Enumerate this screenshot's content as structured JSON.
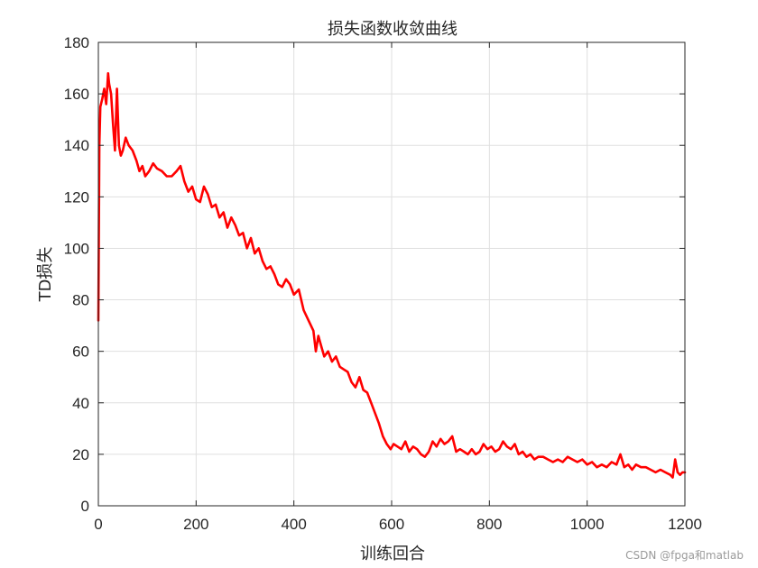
{
  "watermark": "CSDN @fpga和matlab",
  "chart_data": {
    "type": "line",
    "title": "损失函数收敛曲线",
    "xlabel": "训练回合",
    "ylabel": "TD损失",
    "xlim": [
      0,
      1200
    ],
    "ylim": [
      0,
      180
    ],
    "xticks": [
      0,
      200,
      400,
      600,
      800,
      1000,
      1200
    ],
    "yticks": [
      0,
      20,
      40,
      60,
      80,
      100,
      120,
      140,
      160,
      180
    ],
    "xtick_labels": [
      "0",
      "200",
      "400",
      "600",
      "800",
      "1000",
      "1200"
    ],
    "ytick_labels": [
      "0",
      "20",
      "40",
      "60",
      "80",
      "100",
      "120",
      "140",
      "160",
      "180"
    ],
    "grid": true,
    "series": [
      {
        "color": "#ff0000",
        "x": [
          0,
          2,
          4,
          8,
          12,
          16,
          20,
          22,
          26,
          30,
          34,
          38,
          42,
          46,
          50,
          56,
          62,
          70,
          78,
          84,
          90,
          96,
          104,
          112,
          120,
          130,
          140,
          150,
          160,
          168,
          176,
          184,
          192,
          200,
          208,
          216,
          224,
          232,
          240,
          248,
          256,
          264,
          272,
          280,
          288,
          296,
          304,
          312,
          320,
          328,
          336,
          344,
          352,
          360,
          368,
          376,
          384,
          392,
          400,
          410,
          420,
          430,
          440,
          445,
          450,
          456,
          462,
          470,
          478,
          486,
          494,
          502,
          510,
          518,
          526,
          534,
          542,
          550,
          558,
          566,
          574,
          582,
          590,
          598,
          604,
          612,
          620,
          628,
          636,
          644,
          652,
          660,
          668,
          676,
          684,
          692,
          700,
          708,
          716,
          724,
          732,
          740,
          748,
          756,
          764,
          772,
          780,
          788,
          796,
          804,
          812,
          820,
          828,
          836,
          844,
          852,
          860,
          868,
          876,
          884,
          892,
          900,
          910,
          920,
          930,
          940,
          950,
          960,
          970,
          980,
          990,
          1000,
          1010,
          1020,
          1030,
          1040,
          1050,
          1060,
          1068,
          1076,
          1084,
          1092,
          1100,
          1110,
          1120,
          1130,
          1140,
          1150,
          1160,
          1170,
          1175,
          1180,
          1185,
          1190,
          1195,
          1200
        ],
        "y": [
          72,
          140,
          155,
          158,
          162,
          156,
          168,
          164,
          160,
          148,
          138,
          162,
          140,
          136,
          138,
          143,
          140,
          138,
          134,
          130,
          132,
          128,
          130,
          133,
          131,
          130,
          128,
          128,
          130,
          132,
          126,
          122,
          124,
          119,
          118,
          124,
          121,
          116,
          117,
          112,
          114,
          108,
          112,
          109,
          105,
          106,
          100,
          104,
          98,
          100,
          95,
          92,
          93,
          90,
          86,
          85,
          88,
          86,
          82,
          84,
          76,
          72,
          68,
          60,
          66,
          62,
          58,
          60,
          56,
          58,
          54,
          53,
          52,
          48,
          46,
          50,
          45,
          44,
          40,
          36,
          32,
          27,
          24,
          22,
          24,
          23,
          22,
          25,
          21,
          23,
          22,
          20,
          19,
          21,
          25,
          23,
          26,
          24,
          25,
          27,
          21,
          22,
          21,
          20,
          22,
          20,
          21,
          24,
          22,
          23,
          21,
          22,
          25,
          23,
          22,
          24,
          20,
          21,
          19,
          20,
          18,
          19,
          19,
          18,
          17,
          18,
          17,
          19,
          18,
          17,
          18,
          16,
          17,
          15,
          16,
          15,
          17,
          16,
          20,
          15,
          16,
          14,
          16,
          15,
          15,
          14,
          13,
          14,
          13,
          12,
          11,
          18,
          13,
          12,
          13,
          13
        ]
      }
    ]
  }
}
